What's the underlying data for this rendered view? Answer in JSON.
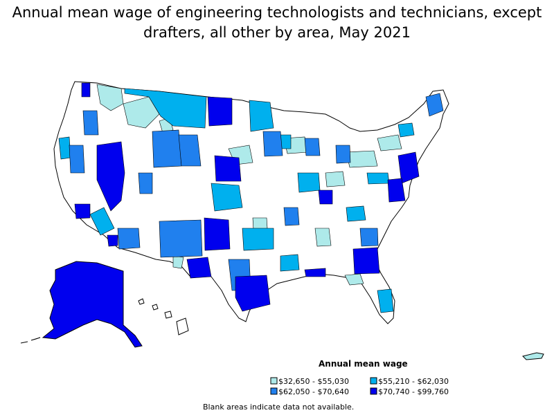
{
  "title": {
    "line1": "Annual mean wage of engineering technologists and technicians, except",
    "line2": "drafters, all other by area, May 2021"
  },
  "legend": {
    "title": "Annual mean wage",
    "items": [
      {
        "label": "$32,650 - $55,030",
        "color": "#aeeaea"
      },
      {
        "label": "$55,210 - $62,030",
        "color": "#00b0ee"
      },
      {
        "label": "$62,050 - $70,640",
        "color": "#2080ee"
      },
      {
        "label": "$70,740 - $99,760",
        "color": "#0000ee"
      }
    ]
  },
  "note": "Blank areas indicate data not available."
}
